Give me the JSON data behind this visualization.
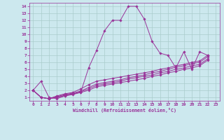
{
  "xlabel": "Windchill (Refroidissement éolien,°C)",
  "background_color": "#cce8ee",
  "line_color": "#993399",
  "grid_color": "#aacccc",
  "xlim": [
    -0.5,
    23.5
  ],
  "ylim": [
    0.5,
    14.5
  ],
  "xticks": [
    0,
    1,
    2,
    3,
    4,
    5,
    6,
    7,
    8,
    9,
    10,
    11,
    12,
    13,
    14,
    15,
    16,
    17,
    18,
    19,
    20,
    21,
    22,
    23
  ],
  "yticks": [
    1,
    2,
    3,
    4,
    5,
    6,
    7,
    8,
    9,
    10,
    11,
    12,
    13,
    14
  ],
  "series": [
    {
      "x": [
        0,
        1,
        2,
        3,
        4,
        5,
        6,
        7,
        8,
        9,
        10,
        11,
        12,
        13,
        14,
        15,
        16,
        17,
        18,
        19,
        20,
        21,
        22
      ],
      "y": [
        2.0,
        3.3,
        1.0,
        0.8,
        1.2,
        1.5,
        1.7,
        5.2,
        7.7,
        10.5,
        12.0,
        12.0,
        14.0,
        14.0,
        12.2,
        9.0,
        7.3,
        7.0,
        5.2,
        7.5,
        5.0,
        7.5,
        7.0
      ]
    },
    {
      "x": [
        0,
        1,
        2,
        3,
        4,
        5,
        6,
        7,
        8,
        9,
        10,
        11,
        12,
        13,
        14,
        15,
        16,
        17,
        18,
        19,
        20,
        21,
        22
      ],
      "y": [
        2.0,
        1.0,
        0.8,
        1.2,
        1.5,
        1.7,
        2.2,
        2.8,
        3.3,
        3.5,
        3.7,
        3.9,
        4.1,
        4.3,
        4.5,
        4.7,
        5.0,
        5.2,
        5.5,
        5.7,
        6.0,
        6.2,
        7.0
      ]
    },
    {
      "x": [
        0,
        1,
        2,
        3,
        4,
        5,
        6,
        7,
        8,
        9,
        10,
        11,
        12,
        13,
        14,
        15,
        16,
        17,
        18,
        19,
        20,
        21,
        22
      ],
      "y": [
        2.0,
        1.0,
        0.8,
        1.1,
        1.4,
        1.6,
        1.9,
        2.4,
        2.9,
        3.1,
        3.3,
        3.5,
        3.8,
        4.0,
        4.2,
        4.5,
        4.7,
        5.0,
        5.3,
        5.5,
        5.8,
        6.0,
        6.8
      ]
    },
    {
      "x": [
        0,
        1,
        2,
        3,
        4,
        5,
        6,
        7,
        8,
        9,
        10,
        11,
        12,
        13,
        14,
        15,
        16,
        17,
        18,
        19,
        20,
        21,
        22
      ],
      "y": [
        2.0,
        1.0,
        0.8,
        1.0,
        1.3,
        1.5,
        1.8,
        2.2,
        2.7,
        2.9,
        3.1,
        3.3,
        3.6,
        3.8,
        4.0,
        4.2,
        4.5,
        4.7,
        5.0,
        5.2,
        5.5,
        5.7,
        6.5
      ]
    },
    {
      "x": [
        0,
        1,
        2,
        3,
        4,
        5,
        6,
        7,
        8,
        9,
        10,
        11,
        12,
        13,
        14,
        15,
        16,
        17,
        18,
        19,
        20,
        21,
        22
      ],
      "y": [
        2.0,
        1.0,
        0.8,
        1.0,
        1.2,
        1.4,
        1.7,
        2.0,
        2.5,
        2.7,
        2.9,
        3.1,
        3.3,
        3.5,
        3.7,
        4.0,
        4.2,
        4.5,
        4.7,
        5.0,
        5.2,
        5.5,
        6.3
      ]
    }
  ]
}
